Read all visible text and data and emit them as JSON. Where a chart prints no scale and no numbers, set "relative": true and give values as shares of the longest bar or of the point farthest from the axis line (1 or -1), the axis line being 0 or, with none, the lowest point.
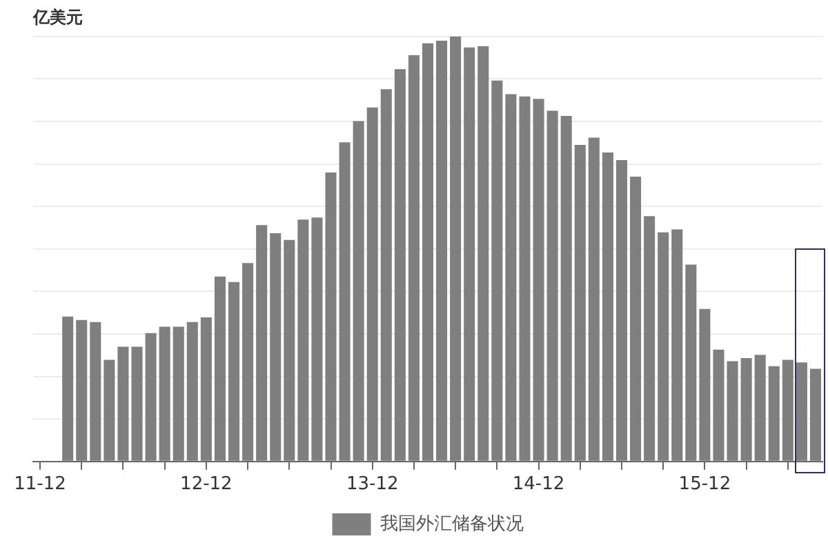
{
  "chart_data": {
    "type": "bar",
    "ylabel": "亿美元",
    "relative": true,
    "grid": "y",
    "legend": "bottom",
    "categories": [
      "11-12",
      null,
      null,
      null,
      null,
      null,
      null,
      null,
      null,
      null,
      null,
      null,
      "12-12",
      null,
      null,
      null,
      null,
      null,
      null,
      null,
      null,
      null,
      null,
      null,
      "13-12",
      null,
      null,
      null,
      null,
      null,
      null,
      null,
      null,
      null,
      null,
      null,
      "14-12",
      null,
      null,
      null,
      null,
      null,
      null,
      null,
      null,
      null,
      null,
      null,
      "15-12",
      null,
      null,
      null,
      null,
      null,
      null,
      null,
      null
    ],
    "series": [
      {
        "name": "我国外汇储备状况",
        "color": "#7f7f7f",
        "values": [
          null,
          null,
          0.341,
          0.333,
          0.328,
          0.239,
          0.27,
          0.27,
          0.302,
          0.317,
          0.317,
          0.328,
          0.339,
          0.435,
          0.422,
          0.467,
          0.556,
          0.537,
          0.521,
          0.569,
          0.574,
          0.68,
          0.751,
          0.801,
          0.833,
          0.876,
          0.923,
          0.956,
          0.984,
          0.99,
          1,
          0.974,
          0.977,
          0.896,
          0.864,
          0.859,
          0.853,
          0.825,
          0.813,
          0.745,
          0.762,
          0.727,
          0.709,
          0.67,
          0.577,
          0.539,
          0.546,
          0.463,
          0.359,
          0.263,
          0.236,
          0.243,
          0.251,
          0.224,
          0.239,
          0.233,
          0.218
        ]
      }
    ]
  }
}
